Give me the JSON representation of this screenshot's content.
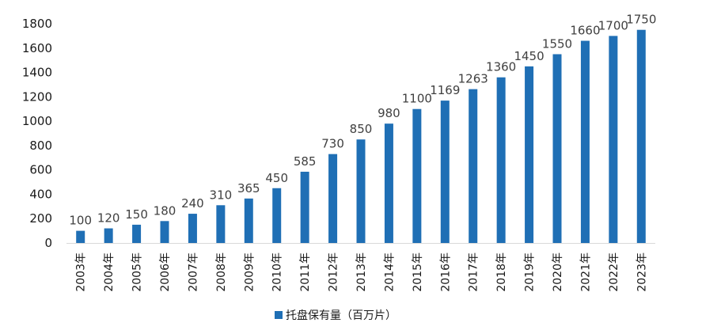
{
  "chart_data": {
    "type": "bar",
    "categories": [
      "2003年",
      "2004年",
      "2005年",
      "2006年",
      "2007年",
      "2008年",
      "2009年",
      "2010年",
      "2011年",
      "2012年",
      "2013年",
      "2014年",
      "2015年",
      "2016年",
      "2017年",
      "2018年",
      "2019年",
      "2020年",
      "2021年",
      "2022年",
      "2023年"
    ],
    "series": [
      {
        "name": "托盘保有量（百万片）",
        "values": [
          100,
          120,
          150,
          180,
          240,
          310,
          365,
          450,
          585,
          730,
          850,
          980,
          1100,
          1169,
          1263,
          1360,
          1450,
          1550,
          1660,
          1700,
          1750
        ]
      }
    ],
    "ylim": [
      0,
      1800
    ],
    "yticks": [
      0,
      200,
      400,
      600,
      800,
      1000,
      1200,
      1400,
      1600,
      1800
    ],
    "grid": false,
    "legend_position": "bottom",
    "colors": {
      "bar": "#1f6fb5",
      "axis": "#d9d9d9"
    }
  }
}
